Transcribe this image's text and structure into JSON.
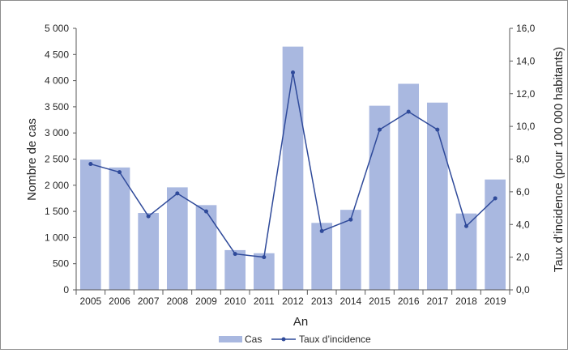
{
  "chart_data": {
    "type": "bar",
    "categories": [
      "2005",
      "2006",
      "2007",
      "2008",
      "2009",
      "2010",
      "2011",
      "2012",
      "2013",
      "2014",
      "2015",
      "2016",
      "2017",
      "2018",
      "2019"
    ],
    "series": [
      {
        "name": "Cas",
        "type": "bar",
        "axis": "left",
        "color": "#a9b8e0",
        "values": [
          2490,
          2340,
          1470,
          1960,
          1620,
          760,
          700,
          4650,
          1280,
          1530,
          3520,
          3940,
          3580,
          1460,
          2110
        ]
      },
      {
        "name": "Taux d’incidence",
        "type": "line",
        "axis": "right",
        "color": "#2f4a9a",
        "values": [
          7.7,
          7.2,
          4.5,
          5.9,
          4.8,
          2.2,
          2.0,
          13.3,
          3.6,
          4.3,
          9.8,
          10.9,
          9.8,
          3.9,
          5.6
        ]
      }
    ],
    "xlabel": "An",
    "ylabel": "Nombre de cas",
    "y2label": "Taux d’incidence (pour 100 000 habitants)",
    "ylim": [
      0,
      5000
    ],
    "y2lim": [
      0,
      16
    ],
    "yticks": [
      "0",
      "500",
      "1 000",
      "1 500",
      "2 000",
      "2 500",
      "3 000",
      "3 500",
      "4 000",
      "4 500",
      "5 000"
    ],
    "y2ticks": [
      "0,0",
      "2,0",
      "4,0",
      "6,0",
      "8,0",
      "10,0",
      "12,0",
      "14,0",
      "16,0"
    ],
    "grid": false,
    "legend": "bottom"
  }
}
